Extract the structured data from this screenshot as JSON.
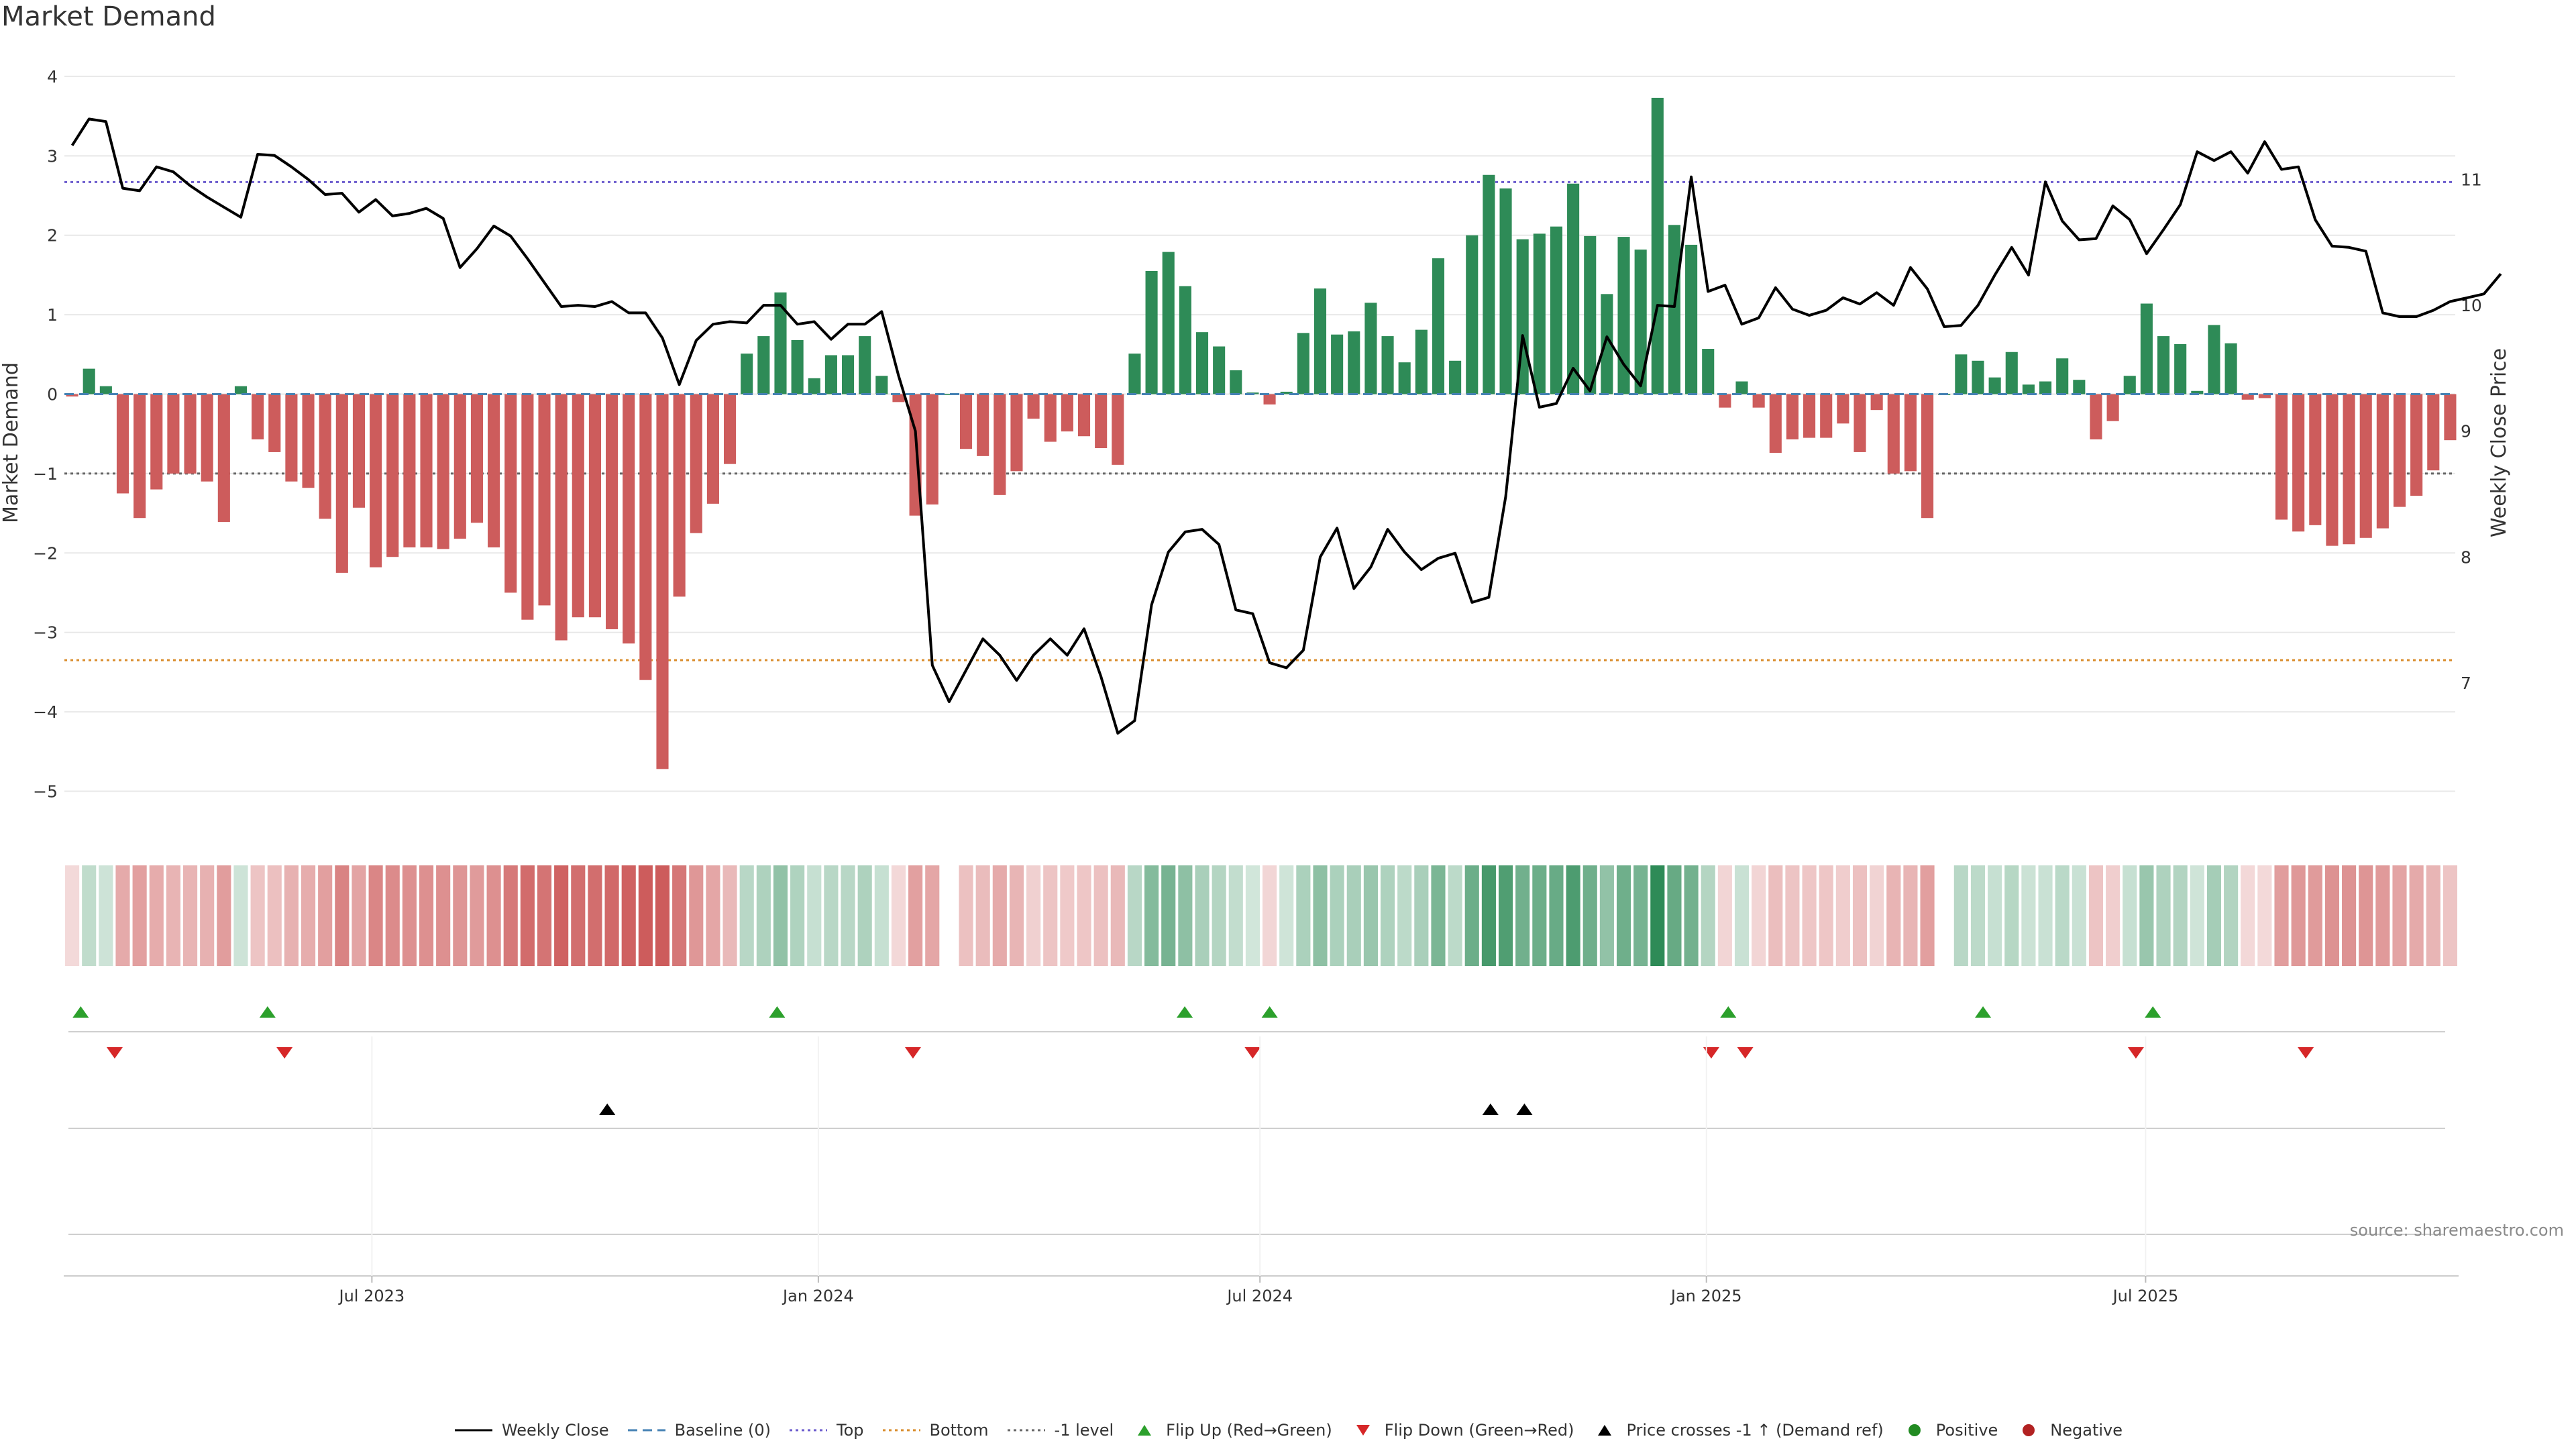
{
  "title": "Market Demand",
  "source": "source: sharemaestro.com",
  "colors": {
    "positive_bar": "#2e8b57",
    "negative_bar": "#cd5c5c",
    "price_line": "#000000",
    "top_line": "#6a5acd",
    "bottom_line": "#d98c2b",
    "minus1_line": "#666666",
    "baseline": "#4682b4",
    "flip_up": "#2ca02c",
    "flip_down": "#d62728"
  },
  "chart_data": {
    "type": "bar",
    "title": "Market Demand",
    "ylabel": "Market Demand",
    "y2label": "Weekly Close Price",
    "ylim": [
      -5.3,
      4.05
    ],
    "y2lim": [
      5.95,
      11.85
    ],
    "yticks": [
      4,
      3,
      2,
      1,
      0,
      -1,
      -2,
      -3,
      -4,
      -5
    ],
    "y2ticks": [
      11,
      10,
      9,
      8,
      7
    ],
    "ref_lines": {
      "top": 2.67,
      "bottom": -3.35,
      "minus_one": -1.0,
      "baseline": 0
    },
    "x_start": "2023-02-24",
    "x_end": "2025-11-07",
    "xticks": [
      {
        "label": "Jul 2023",
        "date": "2023-07-01"
      },
      {
        "label": "Jan 2024",
        "date": "2024-01-01"
      },
      {
        "label": "Jul 2024",
        "date": "2024-07-01"
      },
      {
        "label": "Jan 2025",
        "date": "2025-01-01"
      },
      {
        "label": "Jul 2025",
        "date": "2025-07-01"
      }
    ],
    "demand": [
      -0.03,
      0.32,
      0.1,
      -1.25,
      -1.56,
      -1.2,
      -1.0,
      -1.0,
      -1.1,
      -1.61,
      0.1,
      -0.57,
      -0.73,
      -1.1,
      -1.18,
      -1.57,
      -2.25,
      -1.43,
      -2.18,
      -2.05,
      -1.93,
      -1.93,
      -1.95,
      -1.82,
      -1.62,
      -1.93,
      -2.5,
      -2.84,
      -2.66,
      -3.1,
      -2.81,
      -2.81,
      -2.96,
      -3.14,
      -3.6,
      -4.72,
      -2.55,
      -1.75,
      -1.38,
      -0.88,
      0.51,
      0.73,
      1.28,
      0.68,
      0.2,
      0.49,
      0.49,
      0.73,
      0.23,
      -0.1,
      -1.53,
      -1.39,
      0,
      -0.69,
      -0.78,
      -1.27,
      -0.97,
      -0.31,
      -0.6,
      -0.47,
      -0.53,
      -0.68,
      -0.89,
      0.51,
      1.55,
      1.79,
      1.36,
      0.78,
      0.6,
      0.3,
      0.02,
      -0.13,
      0.03,
      0.77,
      1.33,
      0.75,
      0.79,
      1.15,
      0.73,
      0.4,
      0.81,
      1.71,
      0.42,
      2.0,
      2.76,
      2.59,
      1.95,
      2.02,
      2.11,
      2.65,
      1.99,
      1.26,
      1.98,
      1.82,
      3.73,
      2.13,
      1.88,
      0.57,
      -0.17,
      0.16,
      -0.17,
      -0.74,
      -0.57,
      -0.55,
      -0.55,
      -0.37,
      -0.73,
      -0.2,
      -1.0,
      -0.97,
      -1.56,
      0.0,
      0.5,
      0.42,
      0.21,
      0.53,
      0.12,
      0.16,
      0.45,
      0.18,
      -0.57,
      -0.34,
      0.23,
      1.14,
      0.73,
      0.63,
      0.04,
      0.87,
      0.64,
      -0.07,
      -0.05,
      -1.58,
      -1.73,
      -1.65,
      -1.91,
      -1.89,
      -1.81,
      -1.69,
      -1.42,
      -1.28,
      -0.96,
      -0.58
    ],
    "weekly_close": [
      11.27,
      11.48,
      11.46,
      10.93,
      10.91,
      11.1,
      11.06,
      10.95,
      10.86,
      10.78,
      10.7,
      11.2,
      11.19,
      11.1,
      11.0,
      10.88,
      10.89,
      10.74,
      10.84,
      10.71,
      10.73,
      10.77,
      10.69,
      10.3,
      10.45,
      10.63,
      10.55,
      10.37,
      10.18,
      9.99,
      10.0,
      9.99,
      10.03,
      9.94,
      9.94,
      9.74,
      9.37,
      9.72,
      9.85,
      9.87,
      9.86,
      10.0,
      10.0,
      9.85,
      9.87,
      9.73,
      9.85,
      9.85,
      9.95,
      9.44,
      9.0,
      7.14,
      6.85,
      7.1,
      7.35,
      7.22,
      7.02,
      7.22,
      7.35,
      7.22,
      7.43,
      7.05,
      6.6,
      6.7,
      7.62,
      8.04,
      8.2,
      8.22,
      8.1,
      7.58,
      7.55,
      7.16,
      7.12,
      7.26,
      8.0,
      8.23,
      7.75,
      7.92,
      8.22,
      8.04,
      7.9,
      7.99,
      8.03,
      7.64,
      7.68,
      8.48,
      9.76,
      9.19,
      9.22,
      9.5,
      9.32,
      9.75,
      9.53,
      9.36,
      10.0,
      9.99,
      11.02,
      10.11,
      10.16,
      9.85,
      9.9,
      10.14,
      9.97,
      9.92,
      9.96,
      10.06,
      10.01,
      10.1,
      10.0,
      10.3,
      10.13,
      9.83,
      9.84,
      10.0,
      10.24,
      10.46,
      10.24,
      10.98,
      10.67,
      10.52,
      10.53,
      10.79,
      10.68,
      10.41,
      10.6,
      10.8,
      11.22,
      11.15,
      11.22,
      11.05,
      11.3,
      11.08,
      11.1,
      10.68,
      10.47,
      10.46,
      10.43,
      9.94,
      9.91,
      9.91,
      9.96,
      10.03,
      10.06,
      10.09,
      10.25
    ],
    "flip_up_dates": [
      "2023-03-03",
      "2023-05-19",
      "2023-12-15",
      "2024-05-31",
      "2024-07-05",
      "2025-01-10",
      "2025-04-25",
      "2025-07-04"
    ],
    "flip_down_dates": [
      "2023-03-17",
      "2023-05-26",
      "2024-02-09",
      "2024-06-28",
      "2025-01-03",
      "2025-01-17",
      "2025-06-27",
      "2025-09-05"
    ],
    "price_cross_dates": [
      "2023-10-06",
      "2024-10-04",
      "2024-10-18"
    ]
  },
  "legend": [
    {
      "label": "Weekly Close",
      "icon": "solid-line"
    },
    {
      "label": "Baseline (0)",
      "icon": "dashed-line"
    },
    {
      "label": "Top",
      "icon": "dotted-line-purple"
    },
    {
      "label": "Bottom",
      "icon": "dotted-line-orange"
    },
    {
      "label": "-1 level",
      "icon": "dotted-line-gray"
    },
    {
      "label": "Flip Up (Red→Green)",
      "icon": "triangle-up-green"
    },
    {
      "label": "Flip Down (Green→Red)",
      "icon": "triangle-down-red"
    },
    {
      "label": "Price crosses -1 ↑ (Demand ref)",
      "icon": "triangle-up-black"
    },
    {
      "label": "Positive",
      "icon": "circle-green"
    },
    {
      "label": "Negative",
      "icon": "circle-red"
    }
  ]
}
